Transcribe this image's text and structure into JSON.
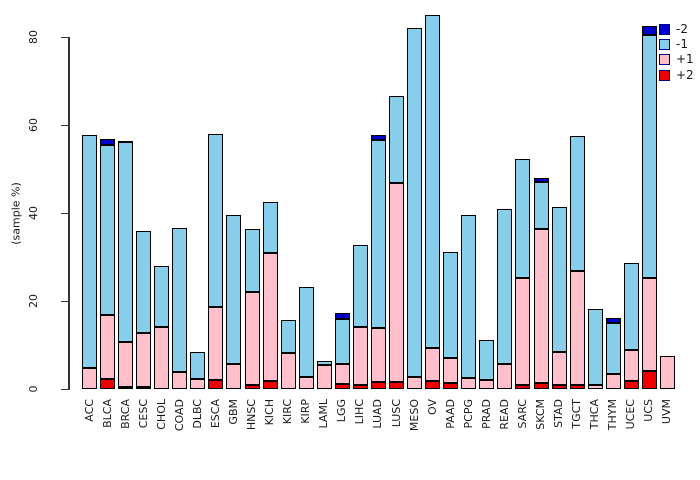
{
  "chart_data": {
    "type": "bar",
    "stacked": true,
    "title": "",
    "ylabel": "(sample %)",
    "ylim": [
      0,
      80
    ],
    "yticks": [
      0,
      20,
      40,
      60,
      80
    ],
    "grid": false,
    "legend_position": "top-right",
    "stack_order_bottom_to_top": [
      "+2",
      "+1",
      "-1",
      "-2"
    ],
    "legend": [
      {
        "label": "-2",
        "color": "#0000CD"
      },
      {
        "label": "-1",
        "color": "#87CEEB"
      },
      {
        "label": "+1",
        "color": "#FFC0CB"
      },
      {
        "label": "+2",
        "color": "#EE0000"
      }
    ],
    "categories": [
      "ACC",
      "BLCA",
      "BRCA",
      "CESC",
      "CHOL",
      "COAD",
      "DLBC",
      "ESCA",
      "GBM",
      "HNSC",
      "KICH",
      "KIRC",
      "KIRP",
      "LAML",
      "LGG",
      "LIHC",
      "LUAD",
      "LUSC",
      "MESO",
      "OV",
      "PAAD",
      "PCPG",
      "PRAD",
      "READ",
      "SARC",
      "SKCM",
      "STAD",
      "TGCT",
      "THCA",
      "THYM",
      "UCEC",
      "UCS",
      "UVM"
    ],
    "series": [
      {
        "name": "+2",
        "color": "#EE0000",
        "values": [
          0,
          2.3,
          0.5,
          0.5,
          0,
          0,
          0,
          2.0,
          0,
          0.8,
          1.8,
          0,
          0,
          0,
          1.1,
          0.8,
          1.6,
          1.7,
          0,
          1.8,
          1.4,
          0,
          0,
          0,
          1.0,
          1.3,
          0.9,
          1.0,
          0,
          0,
          1.8,
          4.1,
          0
        ]
      },
      {
        "name": "+1",
        "color": "#FFC0CB",
        "values": [
          4.8,
          14.5,
          10.2,
          12.2,
          14.1,
          3.9,
          2.3,
          16.6,
          5.7,
          21.2,
          29.1,
          8.2,
          2.8,
          5.4,
          4.5,
          13.2,
          12.3,
          45.1,
          2.7,
          7.5,
          5.6,
          2.5,
          2.1,
          5.7,
          24.2,
          35.1,
          7.5,
          25.8,
          1.0,
          3.4,
          7.1,
          21.2,
          7.5
        ]
      },
      {
        "name": "-1",
        "color": "#87CEEB",
        "values": [
          53.0,
          38.6,
          45.4,
          23.2,
          13.9,
          32.6,
          6.1,
          39.3,
          33.8,
          14.3,
          11.6,
          7.5,
          20.4,
          1.0,
          10.3,
          18.7,
          42.8,
          19.8,
          79.3,
          75.6,
          24.1,
          37.0,
          9.0,
          35.2,
          27.1,
          10.6,
          33.0,
          30.7,
          17.2,
          11.6,
          19.7,
          55.1,
          0
        ]
      },
      {
        "name": "-2",
        "color": "#0000CD",
        "values": [
          0,
          1.5,
          0.3,
          0,
          0,
          0,
          0,
          0,
          0,
          0,
          0,
          0,
          0,
          0,
          1.3,
          0,
          1.0,
          0,
          0,
          0,
          0,
          0,
          0,
          0,
          0,
          1.0,
          0,
          0,
          0,
          1.1,
          0,
          2.2,
          0
        ]
      }
    ]
  }
}
